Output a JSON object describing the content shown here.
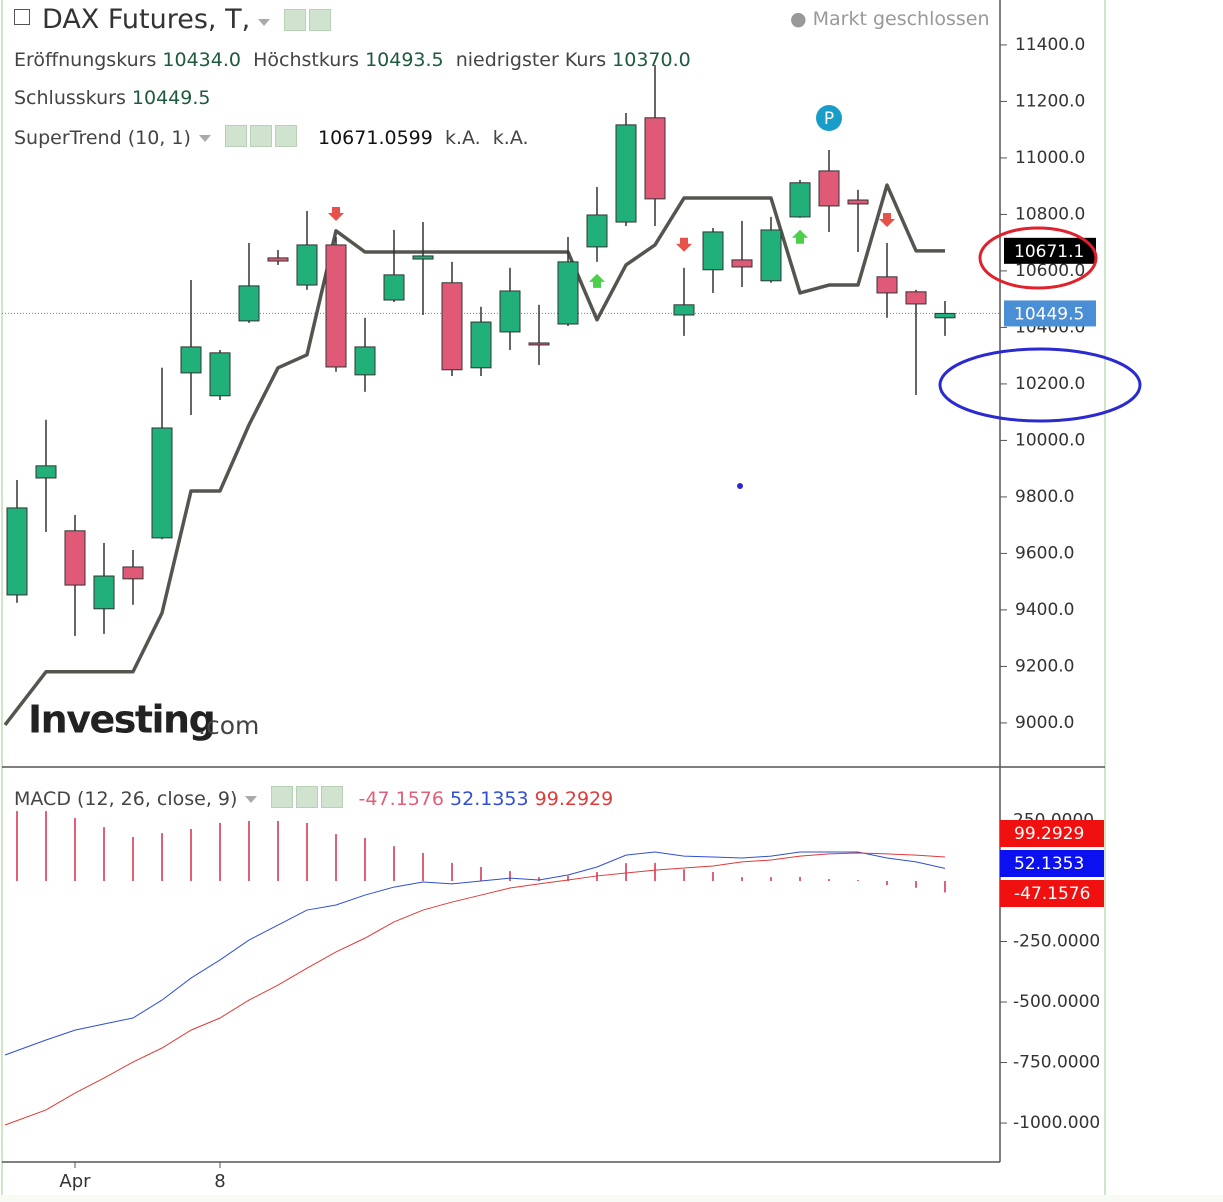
{
  "chart_data": [
    {
      "type": "candlestick",
      "title": "DAX Futures, T,",
      "status": "Markt geschlossen",
      "ohlc_legend": [
        {
          "name": "Eröffnungskurs",
          "label": "10434.0"
        },
        {
          "name": "Höchstkurs",
          "label": "10493.5"
        },
        {
          "name": "niedrigster Kurs",
          "label": "10370.0"
        },
        {
          "name": "Schlusskurs",
          "label": "10449.5"
        }
      ],
      "watermark": [
        "Investing",
        ".com"
      ],
      "categories": [
        null,
        null,
        "Apr",
        null,
        null,
        null,
        null,
        "8",
        null,
        null,
        null,
        null,
        null,
        null,
        null,
        null,
        null,
        null,
        null,
        null,
        null,
        null,
        null,
        null,
        null,
        null,
        null,
        null,
        null,
        null,
        null,
        null,
        null
      ],
      "open": [
        9453,
        9867,
        9680,
        9404,
        9552,
        9655,
        10239,
        10158,
        10423,
        10646,
        10550,
        10692,
        10232,
        10497,
        10642,
        10558,
        10257,
        10384,
        10345,
        10412,
        10685,
        10773,
        11142,
        10444,
        10604,
        10639,
        10565,
        10791,
        10954,
        10851,
        10579,
        10526,
        10434
      ],
      "high": [
        9860,
        10073,
        9736,
        9637,
        9612,
        10257,
        10568,
        10320,
        10699,
        10674,
        10812,
        10720,
        10434,
        10745,
        10773,
        10632,
        10473,
        10611,
        10480,
        10720,
        10897,
        11159,
        11329,
        10611,
        10752,
        10777,
        10791,
        10922,
        11028,
        10887,
        10699,
        10533,
        10493.5
      ],
      "low": [
        9425,
        9676,
        9308,
        9315,
        9418,
        9650,
        10090,
        10143,
        10416,
        10621,
        10533,
        10243,
        10172,
        10490,
        10444,
        10228,
        10228,
        10320,
        10267,
        10405,
        10632,
        10759,
        10759,
        10370,
        10522,
        10543,
        10558,
        10788,
        10738,
        10667,
        10434,
        10161,
        10370
      ],
      "close": [
        9761,
        9910,
        9488,
        9520,
        9510,
        10044,
        10331,
        10310,
        10547,
        10635,
        10692,
        10260,
        10331,
        10586,
        10653,
        10250,
        10419,
        10529,
        10338,
        10632,
        10798,
        11117,
        10855,
        10480,
        10738,
        10614,
        10745,
        10912,
        10830,
        10837,
        10522,
        10483,
        10449.5
      ],
      "up_color": "#22b07a",
      "down_color": "#e05a78",
      "series": [
        {
          "name": "SuperTrend (10, 1)",
          "color": "#555550",
          "value_label": "10671.0599",
          "extra_labels": [
            "k.A.",
            "k.A."
          ],
          "values": [
            8993,
            9181,
            9181,
            9181,
            9181,
            9389,
            9821,
            9821,
            10055,
            10257,
            10303,
            10742,
            10667,
            10667,
            10667,
            10667,
            10667,
            10667,
            10667,
            10667,
            10427,
            10621,
            10692,
            10858,
            10858,
            10858,
            10858,
            10522,
            10550,
            10550,
            10904,
            10671,
            10671
          ]
        }
      ],
      "buy_signals": [
        20,
        27
      ],
      "sell_signals": [
        11,
        23,
        30
      ],
      "marker": {
        "index": 28,
        "label": "P"
      },
      "price_tags": [
        {
          "value": 10671.1,
          "color": "#000000"
        },
        {
          "value": 10449.5,
          "color": "#4a8fd6",
          "dotted_line": true
        }
      ],
      "ylim": [
        8851,
        11559
      ],
      "yticks": [
        {
          "value": 9000,
          "label": "9000.0"
        },
        {
          "value": 9200,
          "label": "9200.0"
        },
        {
          "value": 9400,
          "label": "9400.0"
        },
        {
          "value": 9600,
          "label": "9600.0"
        },
        {
          "value": 9800,
          "label": "9800.0"
        },
        {
          "value": 10000,
          "label": "10000.0"
        },
        {
          "value": 10200,
          "label": "10200.0"
        },
        {
          "value": 10400,
          "label": "10400.0"
        },
        {
          "value": 10600,
          "label": "10600.0"
        },
        {
          "value": 10800,
          "label": "10800.0"
        },
        {
          "value": 11000,
          "label": "11000.0"
        },
        {
          "value": 11200,
          "label": "11200.0"
        },
        {
          "value": 11400,
          "label": "11400.0"
        }
      ]
    },
    {
      "type": "macd",
      "title": "MACD (12, 26, close, 9)",
      "series": [
        {
          "type": "bar",
          "color": "#e0607a",
          "values": [
            289,
            289,
            260,
            223,
            182,
            198,
            215,
            240,
            248,
            248,
            240,
            194,
            178,
            144,
            116,
            75,
            58,
            41,
            16,
            21,
            37,
            74,
            75,
            49,
            37,
            16,
            16,
            17,
            8,
            4,
            -17,
            -28,
            -47.1576
          ]
        },
        {
          "type": "line",
          "color": "#2f4fd0",
          "values": [
            -719,
            -657,
            -616,
            -591,
            -566,
            -492,
            -401,
            -326,
            -244,
            -182,
            -120,
            -99,
            -58,
            -25,
            -4,
            -12,
            0,
            12,
            4,
            25,
            58,
            107,
            120,
            103,
            99,
            95,
            103,
            120,
            120,
            120,
            95,
            79,
            52.1353
          ]
        },
        {
          "type": "line",
          "color": "#e03a3a",
          "values": [
            -1008,
            -946,
            -876,
            -814,
            -748,
            -690,
            -616,
            -566,
            -492,
            -430,
            -360,
            -293,
            -236,
            -169,
            -120,
            -87,
            -58,
            -29,
            -12,
            4,
            21,
            33,
            45,
            54,
            62,
            79,
            87,
            103,
            112,
            116,
            112,
            107,
            99.2929
          ]
        }
      ],
      "ylim": [
        -1161,
        467
      ],
      "yticks": [
        {
          "value": 250,
          "label": "250.0000"
        },
        {
          "value": -250,
          "label": "-250.0000"
        },
        {
          "value": -500,
          "label": "-500.0000"
        },
        {
          "value": -750,
          "label": "-750.0000"
        },
        {
          "value": -1000,
          "label": "-1000.000"
        }
      ]
    }
  ]
}
